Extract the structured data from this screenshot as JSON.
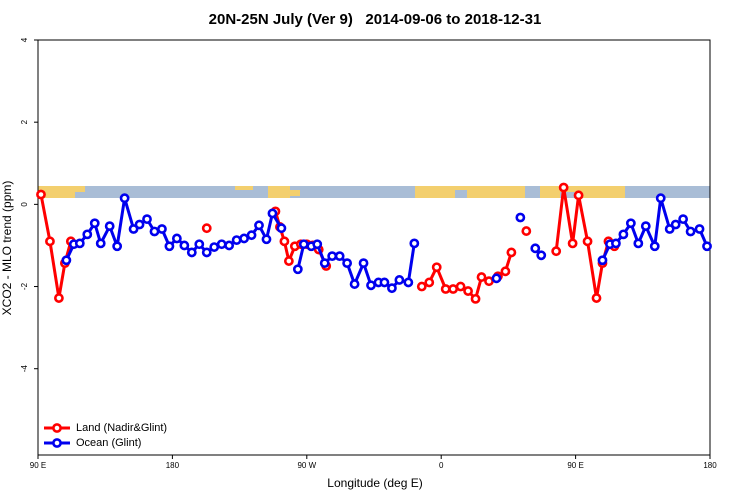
{
  "chart_data": {
    "type": "line",
    "title": "20N-25N July (Ver 9)   2014-09-06 to 2018-12-31",
    "x_label": "Longitude (deg E)",
    "y_label": "XCO2 - MLO trend (ppm)",
    "xlim": [
      90,
      540
    ],
    "ylim": [
      -6.1,
      4
    ],
    "xticks": [
      {
        "value": 90,
        "label": "90 E"
      },
      180,
      {
        "value": 270,
        "label": "90 W"
      },
      {
        "value": 360,
        "label": "0"
      },
      {
        "value": 450,
        "label": "90 E"
      },
      {
        "value": 540,
        "label": "180"
      }
    ],
    "yticks": [
      -4,
      -2,
      0,
      2,
      4
    ],
    "legend": "bottom-left",
    "series": [
      {
        "name": "Land (Nadir&Glint)",
        "color": "#ff0000",
        "x": [
          92,
          98,
          104,
          108,
          112,
          null,
          203,
          null,
          249,
          252,
          255,
          258,
          262,
          266,
          270,
          274,
          278,
          283,
          null,
          347,
          352,
          357,
          363,
          368,
          373,
          378,
          383,
          387,
          392,
          398,
          403,
          407,
          null,
          417,
          null,
          437,
          442,
          448,
          452,
          458,
          464,
          468,
          472,
          476
        ],
        "values": [
          0.24,
          -0.9,
          -2.28,
          -1.43,
          -0.9,
          null,
          -0.58,
          null,
          -0.17,
          -0.55,
          -0.9,
          -1.38,
          -1.02,
          -0.97,
          -0.97,
          -1.0,
          -1.1,
          -1.5,
          null,
          -2.0,
          -1.9,
          -1.53,
          -2.06,
          -2.06,
          -2.0,
          -2.11,
          -2.3,
          -1.77,
          -1.87,
          -1.75,
          -1.63,
          -1.17,
          null,
          -0.65,
          null,
          -1.14,
          0.41,
          -0.95,
          0.22,
          -0.9,
          -2.28,
          -1.43,
          -0.9,
          -1.02
        ]
      },
      {
        "name": "Ocean (Glint)",
        "color": "#0000ee",
        "x": [
          109,
          114,
          118,
          123,
          128,
          132,
          138,
          143,
          148,
          154,
          158,
          163,
          168,
          173,
          178,
          183,
          188,
          193,
          198,
          203,
          208,
          213,
          218,
          223,
          228,
          233,
          238,
          243,
          247,
          253,
          null,
          264,
          268,
          273,
          277,
          282,
          287,
          292,
          297,
          302,
          308,
          313,
          318,
          322,
          327,
          332,
          338,
          342,
          null,
          397,
          null,
          413,
          null,
          423,
          427,
          null,
          468,
          473,
          477,
          482,
          487,
          492,
          497,
          503,
          507,
          513,
          517,
          522,
          527,
          533,
          538
        ],
        "values": [
          -1.36,
          -0.97,
          -0.95,
          -0.73,
          -0.46,
          -0.95,
          -0.53,
          -1.02,
          0.15,
          -0.6,
          -0.49,
          -0.36,
          -0.66,
          -0.6,
          -1.02,
          -0.83,
          -1.0,
          -1.17,
          -0.97,
          -1.17,
          -1.04,
          -0.97,
          -1.0,
          -0.87,
          -0.83,
          -0.75,
          -0.51,
          -0.85,
          -0.22,
          -0.58,
          null,
          -1.58,
          -0.97,
          -1.02,
          -0.97,
          -1.43,
          -1.26,
          -1.26,
          -1.43,
          -1.94,
          -1.43,
          -1.97,
          -1.9,
          -1.9,
          -2.04,
          -1.84,
          -1.9,
          -0.95,
          null,
          -1.8,
          null,
          -0.32,
          null,
          -1.07,
          -1.24,
          null,
          -1.36,
          -0.97,
          -0.95,
          -0.73,
          -0.46,
          -0.95,
          -0.53,
          -1.02,
          0.15,
          -0.6,
          -0.49,
          -0.36,
          -0.66,
          -0.6,
          -1.02
        ]
      }
    ]
  }
}
